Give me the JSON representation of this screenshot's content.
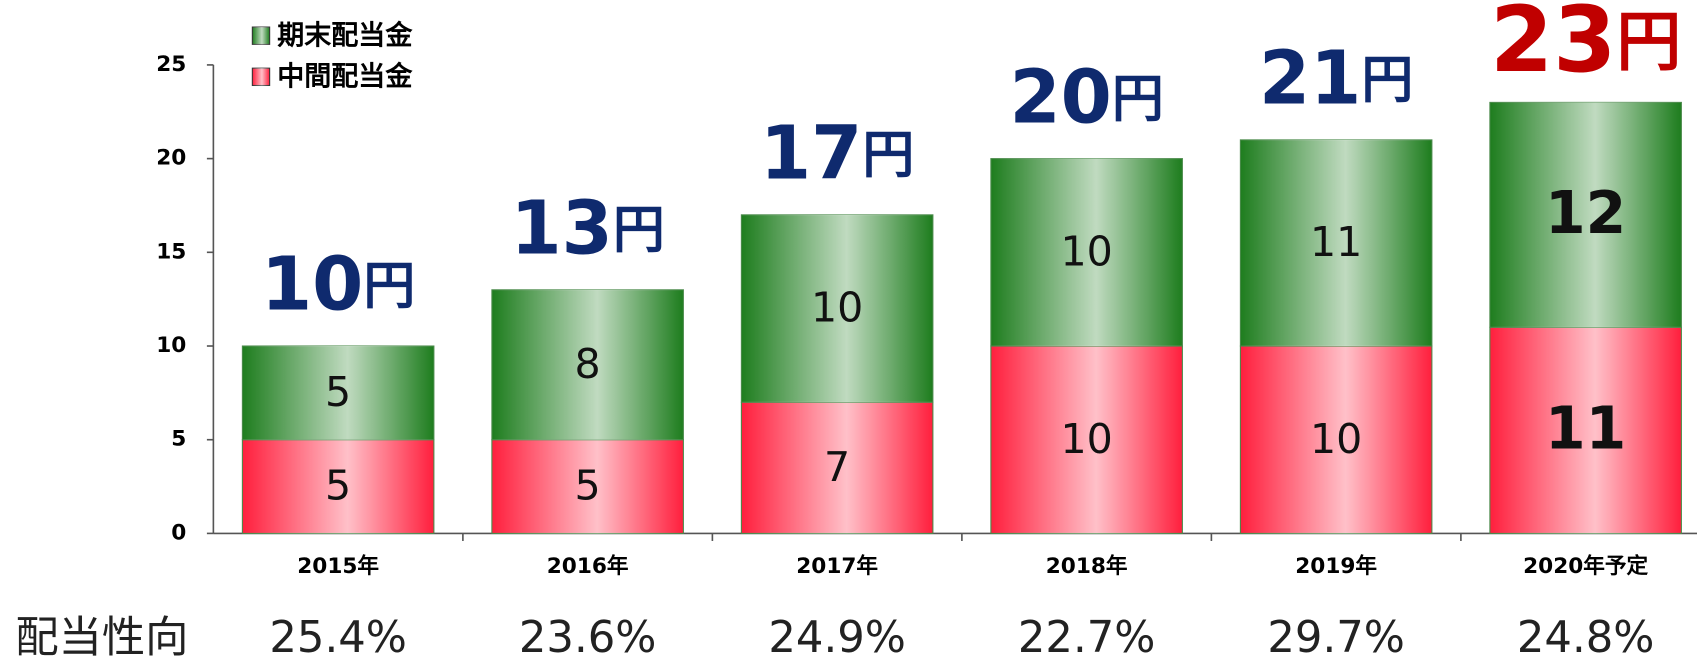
{
  "chart_data": {
    "type": "stacked_bar",
    "categories": [
      "2015年",
      "2016年",
      "2017年",
      "2018年",
      "2019年",
      "2020年予定"
    ],
    "series": [
      {
        "name": "期末配当金",
        "color": "#1e7d1e",
        "values": [
          5,
          8,
          10,
          10,
          11,
          12
        ]
      },
      {
        "name": "中間配当金",
        "color": "#ff1f3d",
        "values": [
          5,
          5,
          7,
          10,
          10,
          11
        ]
      }
    ],
    "totals": [
      10,
      13,
      17,
      20,
      21,
      23
    ],
    "total_unit": "円",
    "total_color": "#0f2a6e",
    "highlight_color": "#c00000",
    "ylim": [
      0,
      25
    ],
    "yticks": [
      0,
      5,
      10,
      15,
      20,
      25
    ],
    "legend": "top-left",
    "payout_label": "配当性向",
    "payout_ratio": [
      25.4,
      23.6,
      24.9,
      22.7,
      29.7,
      24.8
    ],
    "payout_ratio_labels": [
      "25.4%",
      "23.6%",
      "24.9%",
      "22.7%",
      "29.7%",
      "24.8%"
    ]
  }
}
